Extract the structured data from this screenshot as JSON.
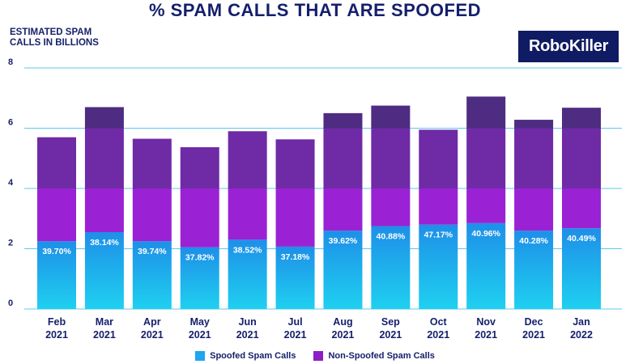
{
  "chart_data": {
    "type": "bar",
    "stacked": true,
    "title": "% SPAM CALLS THAT ARE SPOOFED",
    "ylabel": "ESTIMATED SPAM CALLS IN BILLIONS",
    "ylim": [
      0,
      8
    ],
    "yticks": [
      0,
      2,
      4,
      6,
      8
    ],
    "grid": true,
    "legend_position": "bottom",
    "categories": [
      [
        "Feb",
        "2021"
      ],
      [
        "Mar",
        "2021"
      ],
      [
        "Apr",
        "2021"
      ],
      [
        "May",
        "2021"
      ],
      [
        "Jun",
        "2021"
      ],
      [
        "Jul",
        "2021"
      ],
      [
        "Aug",
        "2021"
      ],
      [
        "Sep",
        "2021"
      ],
      [
        "Oct",
        "2021"
      ],
      [
        "Nov",
        "2021"
      ],
      [
        "Dec",
        "2021"
      ],
      [
        "Jan",
        "2022"
      ]
    ],
    "series": [
      {
        "name": "Spoofed Spam Calls",
        "color": "#1fa6ee",
        "values": [
          2.25,
          2.55,
          2.25,
          2.05,
          2.3,
          2.07,
          2.6,
          2.75,
          2.8,
          2.85,
          2.6,
          2.68
        ],
        "labels": [
          "39.70%",
          "38.14%",
          "39.74%",
          "37.82%",
          "38.52%",
          "37.18%",
          "39.62%",
          "40.88%",
          "47.17%",
          "40.96%",
          "40.28%",
          "40.49%"
        ]
      },
      {
        "name": "Non-Spoofed Spam Calls",
        "color": "#8a1fc6",
        "values": [
          3.45,
          4.15,
          3.4,
          3.32,
          3.6,
          3.56,
          3.9,
          4.0,
          3.15,
          4.2,
          3.68,
          4.0
        ]
      }
    ],
    "total_bar_colors": "Bars show a lighter purple above 6 (dark band) and mid-purple band between 4 and 6"
  },
  "logo": {
    "text": "RoboKiller"
  },
  "colors": {
    "title": "#141f6b",
    "spoofed": "#1fa6ee",
    "nonspoofed": "#8a1fc6",
    "grid": "#5bc8f0"
  }
}
